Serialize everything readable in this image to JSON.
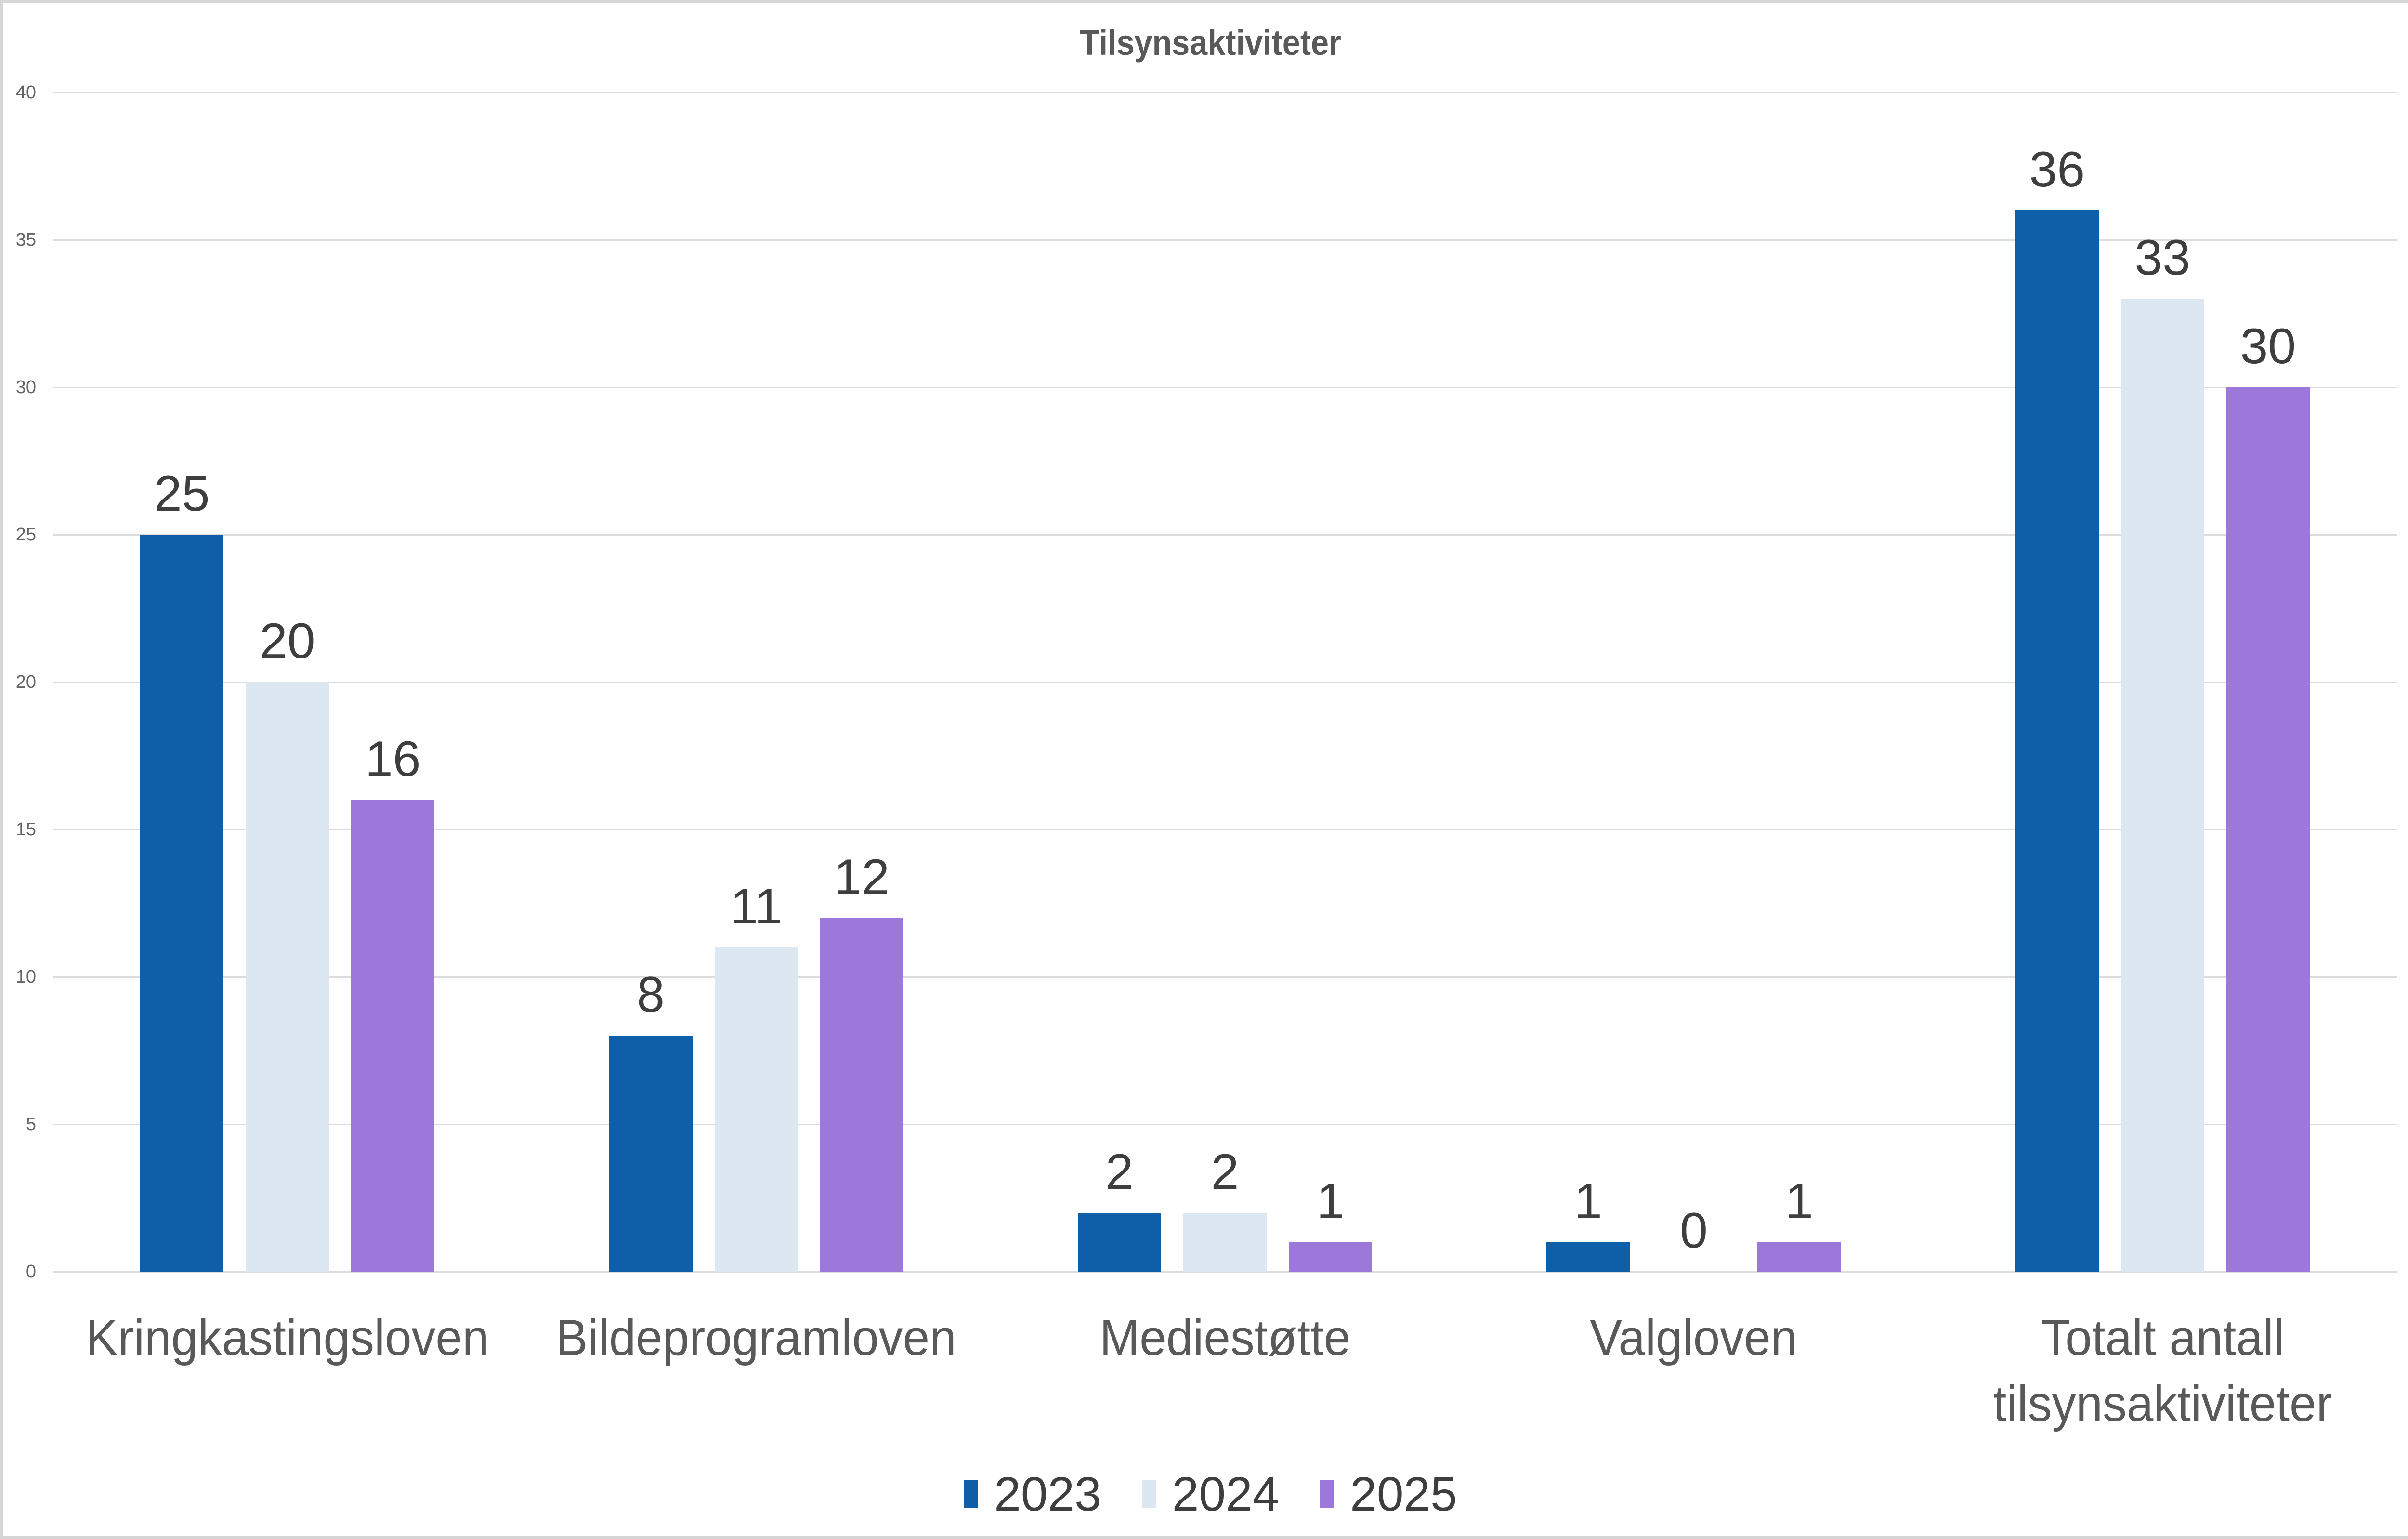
{
  "chart_data": {
    "type": "bar",
    "title": "Tilsynsaktiviteter",
    "categories": [
      "Kringkastingsloven",
      "Bildeprogramloven",
      "Mediestøtte",
      "Valgloven",
      "Totalt antall\ntilsynsaktiviteter"
    ],
    "series": [
      {
        "name": "2023",
        "color": "#0e5ea8",
        "values": [
          25,
          8,
          2,
          1,
          36
        ]
      },
      {
        "name": "2024",
        "color": "#dce7f2",
        "values": [
          20,
          11,
          2,
          0,
          33
        ]
      },
      {
        "name": "2025",
        "color": "#9c78db",
        "values": [
          16,
          12,
          1,
          1,
          30
        ]
      }
    ],
    "y_axis": {
      "min": 0,
      "max": 40,
      "step": 5,
      "ticks": [
        0,
        5,
        10,
        15,
        20,
        25,
        30,
        35,
        40
      ]
    },
    "grid": "horizontal",
    "legend_position": "bottom",
    "colors": {
      "gridline": "#dcdcdc",
      "title_text": "#595959",
      "tick_text": "#646464",
      "category_text": "#595959",
      "value_label_text": "#3e3e3e",
      "frame_border": "#d6d6d6"
    }
  }
}
